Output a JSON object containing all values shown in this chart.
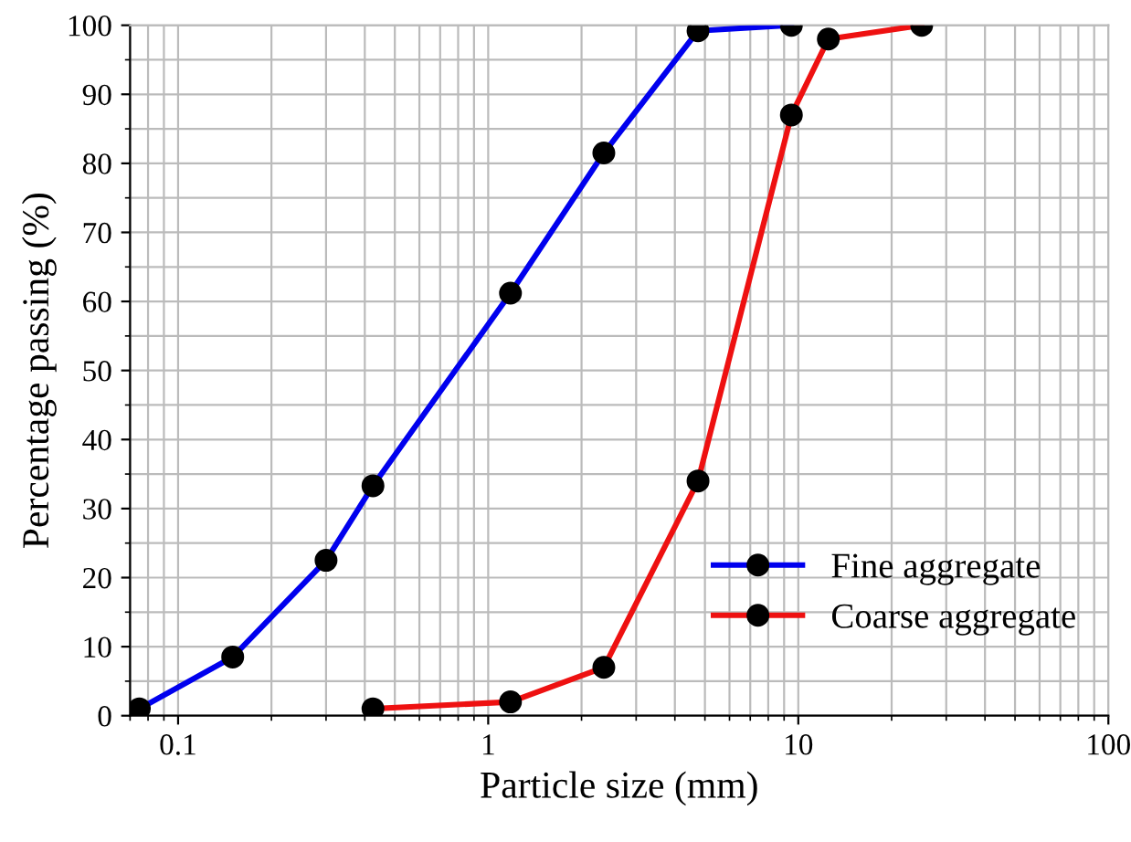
{
  "chart_data": {
    "type": "line",
    "xlabel": "Particle size (mm)",
    "ylabel": "Percentage passing (%)",
    "log": "x",
    "xlim": [
      0.07,
      100
    ],
    "xticks": [
      0.1,
      1,
      10,
      100
    ],
    "ylim": [
      0,
      100
    ],
    "yticks": [
      0,
      10,
      20,
      30,
      40,
      50,
      60,
      70,
      80,
      90,
      100
    ],
    "grid": true,
    "legend": "bottom right",
    "marker": "circle",
    "line_style": "solid",
    "series": [
      {
        "name": "Fine aggregate",
        "color": "#0000ee",
        "x": [
          0.075,
          0.15,
          0.3,
          0.425,
          1.18,
          2.36,
          4.75,
          9.5
        ],
        "values": [
          1,
          8.5,
          22.5,
          33.3,
          61.2,
          81.5,
          99.2,
          100
        ]
      },
      {
        "name": "Coarse aggregate",
        "color": "#ee1111",
        "x": [
          0.425,
          1.18,
          2.36,
          4.75,
          9.5,
          12.5,
          25
        ],
        "values": [
          1,
          2,
          7,
          34,
          87,
          98,
          100
        ]
      }
    ]
  }
}
